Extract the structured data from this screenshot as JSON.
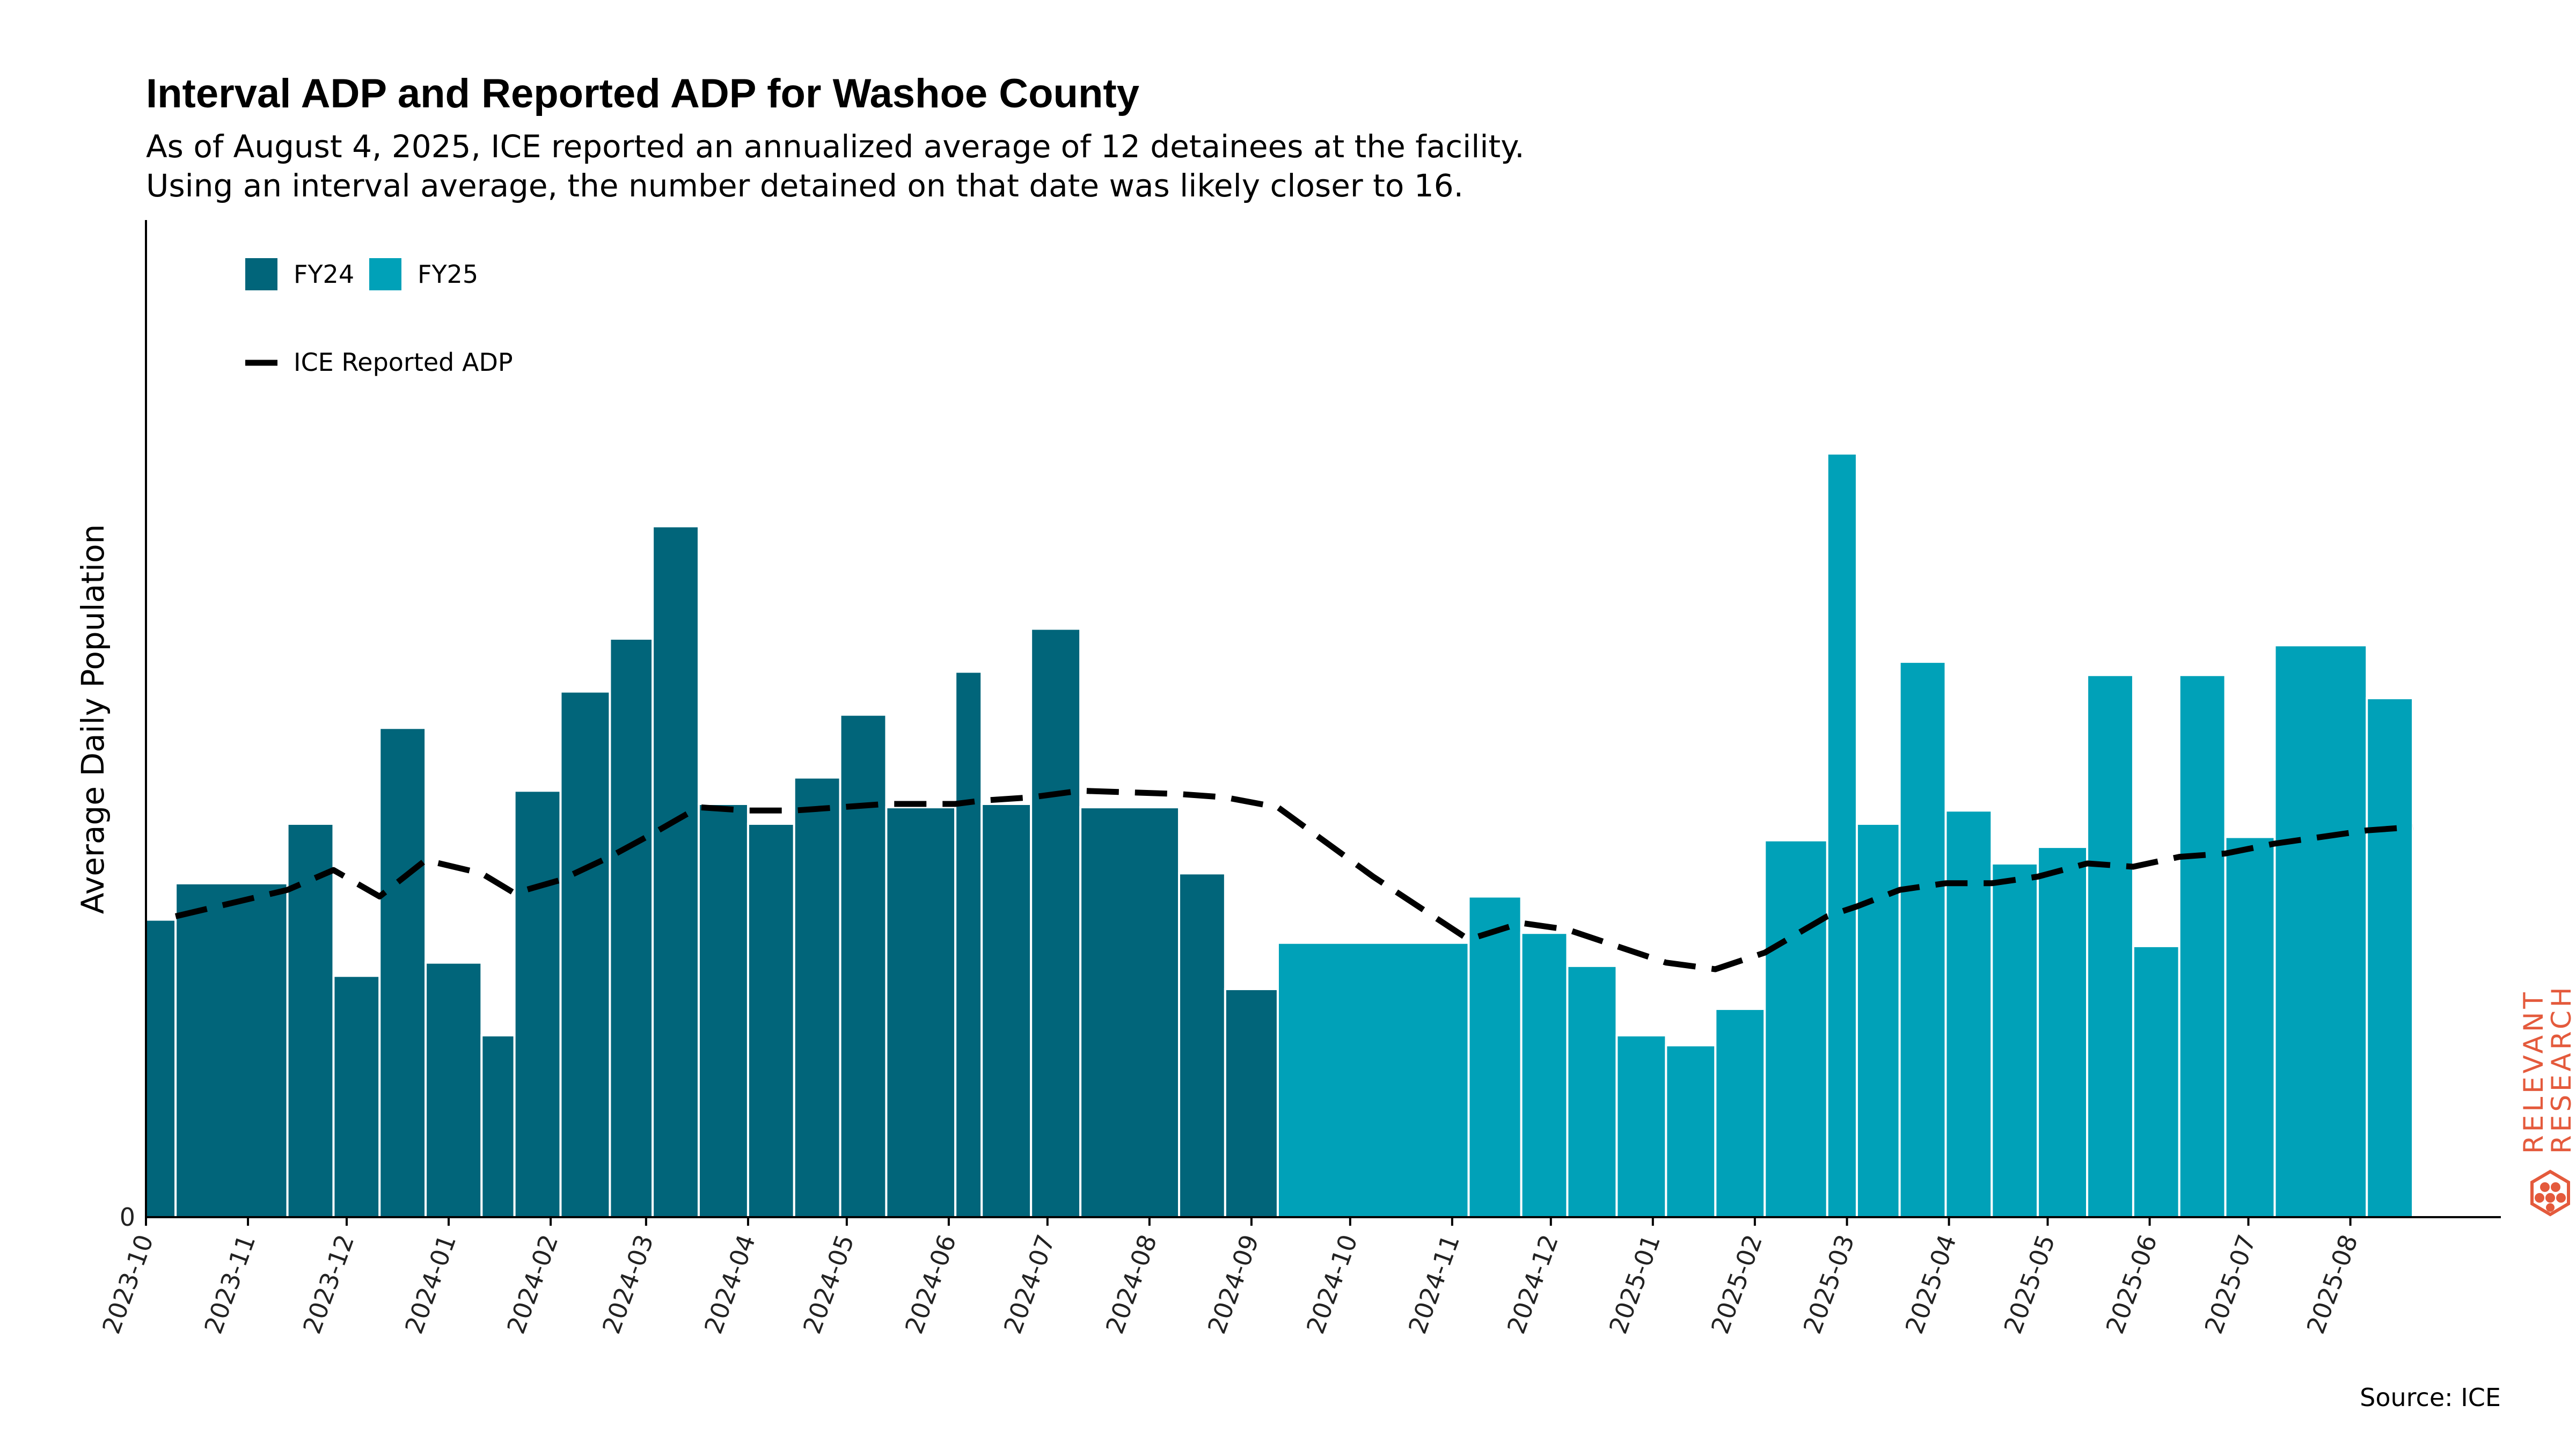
{
  "chart_data": {
    "type": "bar",
    "title": "Interval ADP and Reported ADP for Washoe County",
    "subtitle": [
      "As of August 4, 2025, ICE reported an annualized average of 12 detainees at the facility.",
      "Using an interval average, the number detained on that date was likely closer to 16."
    ],
    "ylabel": "Average Daily Population",
    "xlabel": "",
    "y_ticks": [
      "0"
    ],
    "ylim": [
      0,
      30
    ],
    "xlim": [
      "2023-10-01",
      "2025-09-04"
    ],
    "x_ticks": [
      "2023-10",
      "2023-11",
      "2023-12",
      "2024-01",
      "2024-02",
      "2024-03",
      "2024-04",
      "2024-05",
      "2024-06",
      "2024-07",
      "2024-08",
      "2024-09",
      "2024-10",
      "2024-11",
      "2024-12",
      "2025-01",
      "2025-02",
      "2025-03",
      "2025-04",
      "2025-05",
      "2025-06",
      "2025-07",
      "2025-08"
    ],
    "grid": false,
    "legend_position": "top-left",
    "series": [
      {
        "name": "FY24",
        "color": "#01657a",
        "bars": [
          {
            "start": "2023-10-01",
            "end": "2023-10-10",
            "value": 9.0
          },
          {
            "start": "2023-10-10",
            "end": "2023-11-13",
            "value": 10.1
          },
          {
            "start": "2023-11-13",
            "end": "2023-11-27",
            "value": 11.9
          },
          {
            "start": "2023-11-27",
            "end": "2023-12-11",
            "value": 7.3
          },
          {
            "start": "2023-12-11",
            "end": "2023-12-25",
            "value": 14.8
          },
          {
            "start": "2023-12-25",
            "end": "2024-01-11",
            "value": 7.7
          },
          {
            "start": "2024-01-11",
            "end": "2024-01-21",
            "value": 5.5
          },
          {
            "start": "2024-01-21",
            "end": "2024-02-04",
            "value": 12.9
          },
          {
            "start": "2024-02-04",
            "end": "2024-02-19",
            "value": 15.9
          },
          {
            "start": "2024-02-19",
            "end": "2024-03-03",
            "value": 17.5
          },
          {
            "start": "2024-03-03",
            "end": "2024-03-17",
            "value": 20.9
          },
          {
            "start": "2024-03-17",
            "end": "2024-04-01",
            "value": 12.5
          },
          {
            "start": "2024-04-01",
            "end": "2024-04-15",
            "value": 11.9
          },
          {
            "start": "2024-04-15",
            "end": "2024-04-29",
            "value": 13.3
          },
          {
            "start": "2024-04-29",
            "end": "2024-05-13",
            "value": 15.2
          },
          {
            "start": "2024-05-13",
            "end": "2024-06-03",
            "value": 12.4
          },
          {
            "start": "2024-06-03",
            "end": "2024-06-11",
            "value": 16.5
          },
          {
            "start": "2024-06-11",
            "end": "2024-06-26",
            "value": 12.5
          },
          {
            "start": "2024-06-26",
            "end": "2024-07-11",
            "value": 17.8
          },
          {
            "start": "2024-07-11",
            "end": "2024-08-10",
            "value": 12.4
          },
          {
            "start": "2024-08-10",
            "end": "2024-08-24",
            "value": 10.4
          },
          {
            "start": "2024-08-24",
            "end": "2024-09-09",
            "value": 6.9
          }
        ]
      },
      {
        "name": "FY25",
        "color": "#00a1b8",
        "bars": [
          {
            "start": "2024-09-09",
            "end": "2024-11-06",
            "value": 8.3
          },
          {
            "start": "2024-11-06",
            "end": "2024-11-22",
            "value": 9.7
          },
          {
            "start": "2024-11-22",
            "end": "2024-12-06",
            "value": 8.6
          },
          {
            "start": "2024-12-06",
            "end": "2024-12-21",
            "value": 7.6
          },
          {
            "start": "2024-12-21",
            "end": "2025-01-05",
            "value": 5.5
          },
          {
            "start": "2025-01-05",
            "end": "2025-01-20",
            "value": 5.2
          },
          {
            "start": "2025-01-20",
            "end": "2025-02-04",
            "value": 6.3
          },
          {
            "start": "2025-02-04",
            "end": "2025-02-23",
            "value": 11.4
          },
          {
            "start": "2025-02-23",
            "end": "2025-03-04",
            "value": 23.1
          },
          {
            "start": "2025-03-04",
            "end": "2025-03-17",
            "value": 11.9
          },
          {
            "start": "2025-03-17",
            "end": "2025-03-31",
            "value": 16.8
          },
          {
            "start": "2025-03-31",
            "end": "2025-04-14",
            "value": 12.3
          },
          {
            "start": "2025-04-14",
            "end": "2025-04-28",
            "value": 10.7
          },
          {
            "start": "2025-04-28",
            "end": "2025-05-13",
            "value": 11.2
          },
          {
            "start": "2025-05-13",
            "end": "2025-05-27",
            "value": 16.4
          },
          {
            "start": "2025-05-27",
            "end": "2025-06-10",
            "value": 8.2
          },
          {
            "start": "2025-06-10",
            "end": "2025-06-24",
            "value": 16.4
          },
          {
            "start": "2025-06-24",
            "end": "2025-07-09",
            "value": 11.5
          },
          {
            "start": "2025-07-09",
            "end": "2025-08-06",
            "value": 17.3
          },
          {
            "start": "2025-08-06",
            "end": "2025-08-20",
            "value": 15.7
          }
        ]
      }
    ],
    "line": {
      "name": "ICE Reported ADP",
      "color": "#000000",
      "style": "dashed",
      "points": [
        {
          "x": "2023-10-10",
          "y": 9.1
        },
        {
          "x": "2023-11-13",
          "y": 9.9
        },
        {
          "x": "2023-11-27",
          "y": 10.5
        },
        {
          "x": "2023-12-11",
          "y": 9.7
        },
        {
          "x": "2023-12-25",
          "y": 10.8
        },
        {
          "x": "2024-01-11",
          "y": 10.4
        },
        {
          "x": "2024-01-21",
          "y": 9.8
        },
        {
          "x": "2024-02-04",
          "y": 10.2
        },
        {
          "x": "2024-02-19",
          "y": 10.9
        },
        {
          "x": "2024-03-03",
          "y": 11.6
        },
        {
          "x": "2024-03-17",
          "y": 12.4
        },
        {
          "x": "2024-04-01",
          "y": 12.3
        },
        {
          "x": "2024-04-15",
          "y": 12.3
        },
        {
          "x": "2024-04-29",
          "y": 12.4
        },
        {
          "x": "2024-05-13",
          "y": 12.5
        },
        {
          "x": "2024-06-03",
          "y": 12.5
        },
        {
          "x": "2024-06-11",
          "y": 12.6
        },
        {
          "x": "2024-06-26",
          "y": 12.7
        },
        {
          "x": "2024-07-11",
          "y": 12.9
        },
        {
          "x": "2024-08-10",
          "y": 12.8
        },
        {
          "x": "2024-08-24",
          "y": 12.7
        },
        {
          "x": "2024-09-09",
          "y": 12.4
        },
        {
          "x": "2024-10-08",
          "y": 10.3
        },
        {
          "x": "2024-11-06",
          "y": 8.4
        },
        {
          "x": "2024-11-22",
          "y": 8.9
        },
        {
          "x": "2024-12-06",
          "y": 8.7
        },
        {
          "x": "2024-12-21",
          "y": 8.2
        },
        {
          "x": "2025-01-05",
          "y": 7.7
        },
        {
          "x": "2025-01-20",
          "y": 7.5
        },
        {
          "x": "2025-02-04",
          "y": 8.0
        },
        {
          "x": "2025-02-23",
          "y": 9.1
        },
        {
          "x": "2025-03-04",
          "y": 9.4
        },
        {
          "x": "2025-03-17",
          "y": 9.9
        },
        {
          "x": "2025-03-31",
          "y": 10.1
        },
        {
          "x": "2025-04-14",
          "y": 10.1
        },
        {
          "x": "2025-04-28",
          "y": 10.3
        },
        {
          "x": "2025-05-13",
          "y": 10.7
        },
        {
          "x": "2025-05-27",
          "y": 10.6
        },
        {
          "x": "2025-06-10",
          "y": 10.9
        },
        {
          "x": "2025-06-24",
          "y": 11.0
        },
        {
          "x": "2025-07-09",
          "y": 11.3
        },
        {
          "x": "2025-08-06",
          "y": 11.7
        },
        {
          "x": "2025-08-20",
          "y": 11.8
        }
      ]
    },
    "source": "Source: ICE"
  },
  "logo": {
    "line1": "RELEVANT",
    "line2": "RESEARCH",
    "color": "#e45a3c"
  }
}
